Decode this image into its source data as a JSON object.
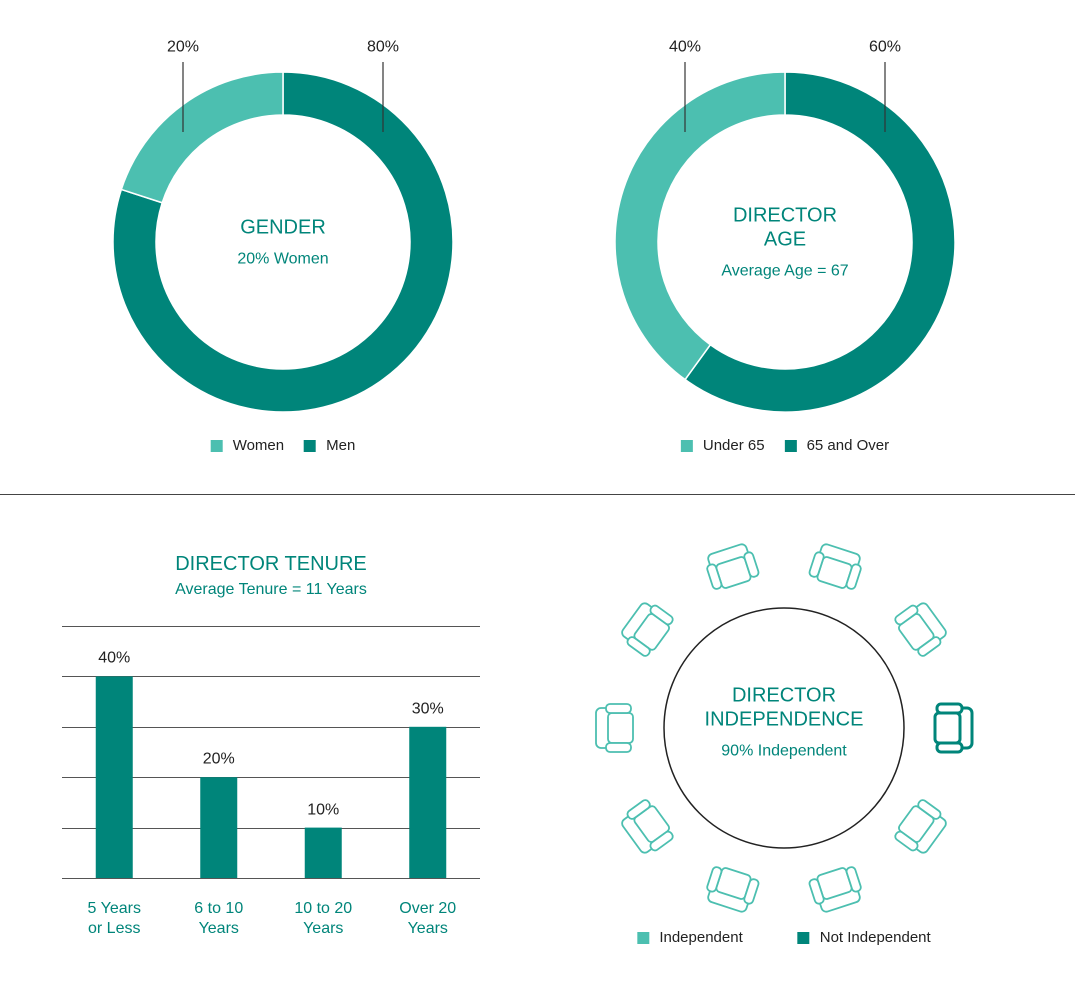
{
  "chart_data": [
    {
      "type": "donut",
      "title": "GENDER",
      "subtitle": "20% Women",
      "categories": [
        "Women",
        "Men"
      ],
      "values": [
        20,
        80
      ],
      "value_labels": [
        "20%",
        "80%"
      ],
      "colors": [
        "#4cbfb0",
        "#00857a"
      ]
    },
    {
      "type": "donut",
      "title": "DIRECTOR\nAGE",
      "subtitle": "Average Age = 67",
      "categories": [
        "Under 65",
        "65 and Over"
      ],
      "values": [
        40,
        60
      ],
      "value_labels": [
        "40%",
        "60%"
      ],
      "colors": [
        "#4cbfb0",
        "#00857a"
      ]
    },
    {
      "type": "bar",
      "title": "DIRECTOR TENURE",
      "subtitle": "Average Tenure = 11 Years",
      "categories": [
        "5 Years\nor Less",
        "6 to 10\nYears",
        "10 to 20\nYears",
        "Over 20\nYears"
      ],
      "values": [
        40,
        20,
        10,
        30
      ],
      "value_labels": [
        "40%",
        "20%",
        "10%",
        "30%"
      ],
      "color": "#00857a",
      "ylim": [
        0,
        50
      ],
      "yticks": [
        0,
        10,
        20,
        30,
        40,
        50
      ],
      "grid": true
    },
    {
      "type": "seats",
      "title": "DIRECTOR\nINDEPENDENCE",
      "subtitle": "90% Independent",
      "categories": [
        "Independent",
        "Not Independent"
      ],
      "values": [
        9,
        1
      ],
      "colors": [
        "#4cbfb0",
        "#00857a"
      ]
    }
  ]
}
